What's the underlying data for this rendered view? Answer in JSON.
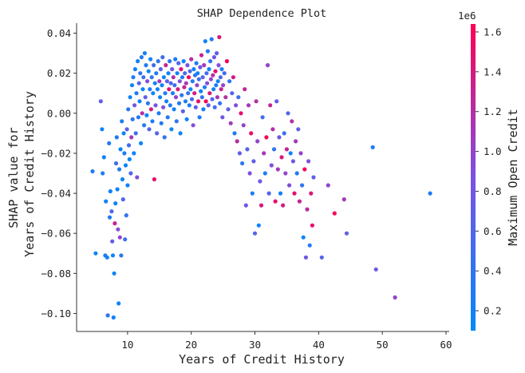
{
  "chart_data": {
    "type": "scatter",
    "title": "SHAP Dependence Plot",
    "xlabel": "Years of Credit History",
    "ylabel_lines": [
      "SHAP value for",
      "Years of Credit History"
    ],
    "xlim": [
      2,
      60.5
    ],
    "ylim": [
      -0.109,
      0.045
    ],
    "x_ticks": [
      10,
      20,
      30,
      40,
      50,
      60
    ],
    "x_tick_labels": [
      "10",
      "20",
      "30",
      "40",
      "50",
      "60"
    ],
    "y_ticks": [
      0.04,
      0.02,
      0.0,
      -0.02,
      -0.04,
      -0.06,
      -0.08,
      -0.1
    ],
    "y_tick_labels": [
      "0.04",
      "0.02",
      "0.00",
      "−0.02",
      "−0.04",
      "−0.06",
      "−0.08",
      "−0.10"
    ],
    "colorbar": {
      "label": "Maximum Open Credit",
      "offset_label": "1e6",
      "range": [
        0.1,
        1.64
      ],
      "ticks": [
        0.2,
        0.4,
        0.6,
        0.8,
        1.0,
        1.2,
        1.4,
        1.6
      ],
      "tick_labels": [
        "0.2",
        "0.4",
        "0.6",
        "0.8",
        "1.0",
        "1.2",
        "1.4",
        "1.6"
      ],
      "colors": [
        "#008afb",
        "#7c52e2",
        "#ff0052"
      ]
    },
    "points": [
      [
        4.5,
        -0.029,
        0.3
      ],
      [
        5.0,
        -0.07,
        0.2
      ],
      [
        5.8,
        0.006,
        0.7
      ],
      [
        6.0,
        -0.008,
        0.2
      ],
      [
        6.1,
        -0.03,
        0.3
      ],
      [
        6.3,
        -0.022,
        0.2
      ],
      [
        6.5,
        -0.071,
        0.3
      ],
      [
        6.6,
        -0.044,
        0.2
      ],
      [
        6.8,
        -0.072,
        0.2
      ],
      [
        6.9,
        -0.101,
        0.4
      ],
      [
        7.1,
        -0.015,
        0.3
      ],
      [
        7.2,
        -0.052,
        0.3
      ],
      [
        7.3,
        -0.039,
        0.2
      ],
      [
        7.5,
        -0.049,
        0.6
      ],
      [
        7.6,
        -0.064,
        0.7
      ],
      [
        7.7,
        -0.071,
        0.2
      ],
      [
        7.8,
        -0.102,
        0.2
      ],
      [
        7.9,
        -0.08,
        0.2
      ],
      [
        8.0,
        -0.055,
        1.3
      ],
      [
        8.1,
        -0.045,
        0.2
      ],
      [
        8.2,
        -0.025,
        0.5
      ],
      [
        8.3,
        -0.012,
        0.3
      ],
      [
        8.4,
        -0.038,
        0.2
      ],
      [
        8.5,
        -0.058,
        0.9
      ],
      [
        8.6,
        -0.095,
        0.2
      ],
      [
        8.7,
        -0.028,
        0.3
      ],
      [
        8.8,
        -0.062,
        1.0
      ],
      [
        8.9,
        -0.018,
        0.2
      ],
      [
        9.0,
        -0.071,
        0.4
      ],
      [
        9.1,
        -0.004,
        0.3
      ],
      [
        9.2,
        -0.033,
        0.2
      ],
      [
        9.3,
        -0.043,
        0.6
      ],
      [
        9.4,
        -0.01,
        0.2
      ],
      [
        9.5,
        -0.02,
        0.3
      ],
      [
        9.6,
        -0.063,
        0.5
      ],
      [
        9.7,
        -0.026,
        0.2
      ],
      [
        9.8,
        -0.051,
        0.4
      ],
      [
        9.9,
        -0.008,
        0.7
      ],
      [
        10.0,
        -0.036,
        0.2
      ],
      [
        10.1,
        0.002,
        0.3
      ],
      [
        10.2,
        -0.016,
        0.5
      ],
      [
        10.3,
        -0.023,
        0.2
      ],
      [
        10.4,
        0.008,
        0.2
      ],
      [
        10.5,
        -0.03,
        0.6
      ],
      [
        10.6,
        -0.012,
        1.1
      ],
      [
        10.7,
        0.014,
        0.2
      ],
      [
        10.8,
        -0.003,
        0.4
      ],
      [
        10.9,
        0.018,
        0.3
      ],
      [
        11.0,
        -0.02,
        0.2
      ],
      [
        11.1,
        0.004,
        0.8
      ],
      [
        11.2,
        0.022,
        0.2
      ],
      [
        11.3,
        -0.01,
        0.5
      ],
      [
        11.4,
        0.01,
        0.3
      ],
      [
        11.5,
        -0.032,
        0.9
      ],
      [
        11.6,
        0.026,
        0.2
      ],
      [
        11.7,
        -0.002,
        0.3
      ],
      [
        11.8,
        0.015,
        0.6
      ],
      [
        11.9,
        0.006,
        0.2
      ],
      [
        12.0,
        0.02,
        0.4
      ],
      [
        12.1,
        -0.015,
        0.2
      ],
      [
        12.2,
        0.028,
        0.3
      ],
      [
        12.3,
        0.0,
        1.2
      ],
      [
        12.4,
        0.012,
        0.2
      ],
      [
        12.5,
        0.018,
        0.5
      ],
      [
        12.6,
        -0.006,
        0.3
      ],
      [
        12.7,
        0.03,
        0.2
      ],
      [
        12.8,
        0.008,
        0.7
      ],
      [
        12.9,
        0.024,
        0.3
      ],
      [
        13.0,
        -0.001,
        0.2
      ],
      [
        13.1,
        0.016,
        0.9
      ],
      [
        13.2,
        0.005,
        0.4
      ],
      [
        13.3,
        0.021,
        0.2
      ],
      [
        13.4,
        -0.008,
        0.6
      ],
      [
        13.5,
        0.012,
        0.3
      ],
      [
        13.6,
        0.027,
        0.2
      ],
      [
        13.7,
        0.002,
        1.4
      ],
      [
        13.8,
        0.018,
        0.4
      ],
      [
        13.9,
        -0.004,
        0.3
      ],
      [
        14.0,
        0.01,
        0.2
      ],
      [
        14.1,
        0.024,
        0.5
      ],
      [
        14.2,
        -0.033,
        1.5
      ],
      [
        14.3,
        0.015,
        0.2
      ],
      [
        14.4,
        0.004,
        0.8
      ],
      [
        14.5,
        0.02,
        0.3
      ],
      [
        14.6,
        -0.01,
        0.6
      ],
      [
        14.7,
        0.012,
        0.2
      ],
      [
        14.8,
        0.026,
        0.4
      ],
      [
        14.9,
        0.0,
        0.3
      ],
      [
        15.0,
        0.016,
        1.1
      ],
      [
        15.1,
        0.008,
        0.2
      ],
      [
        15.2,
        0.022,
        0.6
      ],
      [
        15.3,
        -0.005,
        0.3
      ],
      [
        15.4,
        0.014,
        0.2
      ],
      [
        15.5,
        0.028,
        0.5
      ],
      [
        15.6,
        0.003,
        0.9
      ],
      [
        15.7,
        0.018,
        0.2
      ],
      [
        15.8,
        -0.012,
        0.4
      ],
      [
        15.9,
        0.01,
        0.3
      ],
      [
        16.0,
        0.024,
        1.3
      ],
      [
        16.1,
        0.006,
        0.2
      ],
      [
        16.2,
        0.016,
        0.7
      ],
      [
        16.3,
        -0.002,
        0.3
      ],
      [
        16.4,
        0.02,
        0.2
      ],
      [
        16.5,
        0.012,
        1.5
      ],
      [
        16.6,
        0.026,
        0.4
      ],
      [
        16.7,
        0.004,
        0.3
      ],
      [
        16.8,
        0.015,
        0.6
      ],
      [
        16.9,
        -0.008,
        0.2
      ],
      [
        17.0,
        0.022,
        0.8
      ],
      [
        17.1,
        0.01,
        0.3
      ],
      [
        17.2,
        0.018,
        1.2
      ],
      [
        17.3,
        0.002,
        0.2
      ],
      [
        17.4,
        0.014,
        0.5
      ],
      [
        17.5,
        0.027,
        0.3
      ],
      [
        17.6,
        0.008,
        1.0
      ],
      [
        17.7,
        -0.004,
        0.4
      ],
      [
        17.8,
        0.02,
        0.2
      ],
      [
        17.9,
        0.012,
        1.4
      ],
      [
        18.0,
        0.025,
        0.6
      ],
      [
        18.1,
        0.005,
        0.3
      ],
      [
        18.2,
        0.016,
        0.9
      ],
      [
        18.3,
        -0.01,
        0.2
      ],
      [
        18.4,
        0.022,
        1.5
      ],
      [
        18.5,
        0.009,
        0.4
      ],
      [
        18.6,
        0.018,
        0.3
      ],
      [
        18.7,
        0.001,
        0.7
      ],
      [
        18.8,
        0.026,
        0.2
      ],
      [
        18.9,
        0.013,
        1.3
      ],
      [
        19.0,
        0.02,
        0.5
      ],
      [
        19.1,
        0.006,
        0.3
      ],
      [
        19.2,
        0.015,
        1.1
      ],
      [
        19.3,
        -0.003,
        0.2
      ],
      [
        19.4,
        0.024,
        0.8
      ],
      [
        19.5,
        0.01,
        0.4
      ],
      [
        19.6,
        0.018,
        1.6
      ],
      [
        19.7,
        0.004,
        0.3
      ],
      [
        19.8,
        0.021,
        0.6
      ],
      [
        19.9,
        0.012,
        0.2
      ],
      [
        20.0,
        0.027,
        1.2
      ],
      [
        20.1,
        0.007,
        0.5
      ],
      [
        20.2,
        0.016,
        0.3
      ],
      [
        20.3,
        -0.006,
        0.9
      ],
      [
        20.4,
        0.022,
        0.2
      ],
      [
        20.5,
        0.01,
        1.4
      ],
      [
        20.6,
        0.019,
        0.4
      ],
      [
        20.7,
        0.003,
        0.7
      ],
      [
        20.8,
        0.025,
        0.3
      ],
      [
        20.9,
        0.014,
        1.0
      ],
      [
        21.0,
        0.02,
        0.2
      ],
      [
        21.1,
        0.006,
        1.5
      ],
      [
        21.2,
        0.017,
        0.5
      ],
      [
        21.3,
        -0.002,
        0.3
      ],
      [
        21.4,
        0.023,
        0.8
      ],
      [
        21.5,
        0.011,
        0.2
      ],
      [
        21.6,
        0.029,
        1.3
      ],
      [
        21.7,
        0.008,
        0.4
      ],
      [
        21.8,
        0.018,
        0.6
      ],
      [
        21.9,
        0.002,
        0.2
      ],
      [
        22.0,
        0.024,
        1.1
      ],
      [
        22.1,
        0.013,
        0.3
      ],
      [
        22.2,
        0.036,
        0.2
      ],
      [
        22.3,
        0.006,
        1.6
      ],
      [
        22.4,
        0.02,
        0.5
      ],
      [
        22.5,
        0.015,
        0.9
      ],
      [
        22.6,
        0.031,
        0.3
      ],
      [
        22.7,
        0.004,
        0.7
      ],
      [
        22.8,
        0.022,
        0.2
      ],
      [
        22.9,
        0.01,
        1.4
      ],
      [
        23.0,
        0.026,
        0.4
      ],
      [
        23.1,
        0.017,
        1.0
      ],
      [
        23.2,
        0.037,
        0.3
      ],
      [
        23.3,
        0.007,
        0.6
      ],
      [
        23.4,
        0.019,
        1.2
      ],
      [
        23.5,
        0.012,
        0.2
      ],
      [
        23.6,
        0.028,
        0.8
      ],
      [
        23.7,
        0.003,
        0.5
      ],
      [
        23.8,
        0.021,
        1.5
      ],
      [
        23.9,
        0.014,
        0.3
      ],
      [
        24.0,
        0.03,
        0.7
      ],
      [
        24.1,
        0.008,
        1.1
      ],
      [
        24.2,
        0.016,
        0.2
      ],
      [
        24.3,
        0.024,
        0.9
      ],
      [
        24.4,
        0.038,
        1.4
      ],
      [
        24.5,
        0.005,
        0.4
      ],
      [
        24.6,
        0.018,
        0.6
      ],
      [
        24.7,
        0.012,
        1.3
      ],
      [
        24.8,
        0.022,
        0.3
      ],
      [
        24.9,
        -0.002,
        0.8
      ],
      [
        25.0,
        0.014,
        1.0
      ],
      [
        25.2,
        0.02,
        0.5
      ],
      [
        25.4,
        0.008,
        1.2
      ],
      [
        25.6,
        0.026,
        1.6
      ],
      [
        25.8,
        0.002,
        0.7
      ],
      [
        26.0,
        0.016,
        0.4
      ],
      [
        26.2,
        -0.005,
        1.1
      ],
      [
        26.4,
        0.01,
        0.6
      ],
      [
        26.6,
        0.018,
        1.4
      ],
      [
        26.8,
        -0.01,
        0.3
      ],
      [
        27.0,
        0.004,
        0.9
      ],
      [
        27.2,
        -0.014,
        1.2
      ],
      [
        27.4,
        0.008,
        0.5
      ],
      [
        27.6,
        -0.02,
        0.7
      ],
      [
        27.8,
        0.0,
        1.5
      ],
      [
        28.0,
        -0.025,
        0.4
      ],
      [
        28.2,
        -0.006,
        1.0
      ],
      [
        28.4,
        0.012,
        1.3
      ],
      [
        28.6,
        -0.046,
        0.8
      ],
      [
        28.8,
        -0.018,
        0.6
      ],
      [
        29.0,
        0.004,
        1.1
      ],
      [
        29.2,
        -0.03,
        0.9
      ],
      [
        29.4,
        -0.01,
        1.5
      ],
      [
        29.6,
        -0.04,
        0.3
      ],
      [
        29.8,
        -0.024,
        0.7
      ],
      [
        30.0,
        -0.06,
        0.6
      ],
      [
        30.2,
        0.006,
        1.2
      ],
      [
        30.4,
        -0.014,
        1.0
      ],
      [
        30.6,
        -0.056,
        0.2
      ],
      [
        30.8,
        -0.034,
        0.8
      ],
      [
        31.0,
        -0.046,
        1.4
      ],
      [
        31.2,
        -0.002,
        0.5
      ],
      [
        31.4,
        -0.02,
        1.1
      ],
      [
        31.6,
        -0.03,
        0.3
      ],
      [
        31.8,
        -0.012,
        1.6
      ],
      [
        32.0,
        0.024,
        1.0
      ],
      [
        32.2,
        -0.04,
        0.6
      ],
      [
        32.4,
        0.004,
        1.3
      ],
      [
        32.6,
        -0.026,
        0.9
      ],
      [
        32.8,
        -0.008,
        1.2
      ],
      [
        33.0,
        -0.018,
        0.4
      ],
      [
        33.2,
        -0.044,
        1.5
      ],
      [
        33.4,
        0.006,
        0.7
      ],
      [
        33.6,
        -0.028,
        1.1
      ],
      [
        33.8,
        -0.012,
        0.8
      ],
      [
        34.0,
        -0.04,
        0.2
      ],
      [
        34.2,
        -0.022,
        1.4
      ],
      [
        34.4,
        -0.046,
        1.4
      ],
      [
        34.6,
        -0.01,
        0.5
      ],
      [
        34.8,
        -0.03,
        1.0
      ],
      [
        35.0,
        -0.018,
        1.3
      ],
      [
        35.2,
        0.0,
        0.6
      ],
      [
        35.4,
        -0.036,
        0.9
      ],
      [
        35.6,
        -0.02,
        0.2
      ],
      [
        35.8,
        -0.004,
        1.2
      ],
      [
        36.0,
        -0.024,
        0.8
      ],
      [
        36.2,
        -0.04,
        1.5
      ],
      [
        36.4,
        -0.014,
        1.1
      ],
      [
        36.6,
        -0.03,
        0.3
      ],
      [
        36.8,
        -0.008,
        0.7
      ],
      [
        37.0,
        -0.044,
        1.3
      ],
      [
        37.2,
        -0.02,
        1.0
      ],
      [
        37.4,
        -0.036,
        0.4
      ],
      [
        37.6,
        -0.062,
        0.2
      ],
      [
        37.8,
        -0.028,
        1.6
      ],
      [
        38.0,
        -0.072,
        0.8
      ],
      [
        38.2,
        -0.048,
        1.2
      ],
      [
        38.4,
        -0.024,
        0.9
      ],
      [
        38.6,
        -0.066,
        0.3
      ],
      [
        38.8,
        -0.04,
        1.4
      ],
      [
        39.0,
        -0.056,
        1.5
      ],
      [
        39.2,
        -0.032,
        0.7
      ],
      [
        40.5,
        -0.072,
        0.6
      ],
      [
        41.5,
        -0.036,
        1.0
      ],
      [
        42.5,
        -0.05,
        1.6
      ],
      [
        44.0,
        -0.043,
        1.1
      ],
      [
        44.4,
        -0.06,
        0.7
      ],
      [
        48.5,
        -0.017,
        0.3
      ],
      [
        49.0,
        -0.078,
        0.8
      ],
      [
        52.0,
        -0.092,
        1.0
      ],
      [
        57.5,
        -0.04,
        0.3
      ]
    ]
  }
}
